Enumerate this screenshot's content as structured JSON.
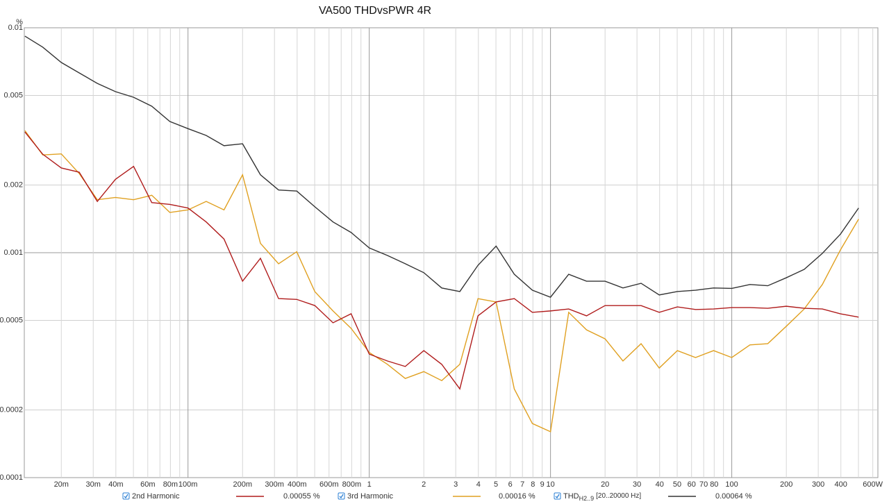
{
  "chart_data": {
    "type": "line",
    "title": "VA500 THDvsPWR 4R",
    "y_label": "%",
    "log_x": true,
    "log_y": true,
    "grid": true,
    "legend": "bottom",
    "x": [
      0.0126,
      0.0158,
      0.02,
      0.0251,
      0.0316,
      0.0398,
      0.0501,
      0.0631,
      0.0794,
      0.1,
      0.126,
      0.158,
      0.2,
      0.251,
      0.316,
      0.398,
      0.501,
      0.631,
      0.794,
      1,
      1.26,
      1.58,
      2,
      2.51,
      3.16,
      3.98,
      5.01,
      6.31,
      7.94,
      10,
      12.6,
      15.8,
      20,
      25.1,
      31.6,
      39.8,
      50.1,
      63.1,
      79.4,
      100,
      126,
      158,
      200,
      251,
      316,
      398,
      501
    ],
    "xlim": [
      0.0125,
      640
    ],
    "ylim": [
      0.0001,
      0.01
    ],
    "yticks": [
      0.01,
      0.005,
      0.002,
      0.001,
      0.0005,
      0.0002,
      0.0001
    ],
    "xticks": [
      {
        "value": 0.02,
        "label": "20m"
      },
      {
        "value": 0.03,
        "label": "30m"
      },
      {
        "value": 0.04,
        "label": "40m"
      },
      {
        "value": 0.06,
        "label": "60m"
      },
      {
        "value": 0.08,
        "label": "80m"
      },
      {
        "value": 0.1,
        "label": "100m"
      },
      {
        "value": 0.2,
        "label": "200m"
      },
      {
        "value": 0.3,
        "label": "300m"
      },
      {
        "value": 0.4,
        "label": "400m"
      },
      {
        "value": 0.6,
        "label": "600m"
      },
      {
        "value": 0.8,
        "label": "800m"
      },
      1,
      2,
      3,
      4,
      5,
      6,
      7,
      8,
      9,
      10,
      20,
      30,
      40,
      50,
      60,
      70,
      80,
      100,
      200,
      300,
      400,
      {
        "value": 600,
        "label": "600W"
      }
    ],
    "xminorticks": [
      0.05,
      0.07,
      0.09,
      0.5,
      0.7,
      0.9,
      90,
      500
    ],
    "series": [
      {
        "name": "2nd Harmonic",
        "legend_value": "0.00055 %",
        "color": "#b01c1c",
        "values": [
          0.00344,
          0.00274,
          0.00238,
          0.00228,
          0.00169,
          0.00212,
          0.00242,
          0.00167,
          0.00164,
          0.00158,
          0.00137,
          0.00115,
          0.000747,
          0.000944,
          0.000625,
          0.00062,
          0.000582,
          0.000488,
          0.000535,
          0.000354,
          0.00033,
          0.000312,
          0.000367,
          0.000319,
          0.000248,
          0.000524,
          0.000604,
          0.000625,
          0.000543,
          0.000551,
          0.000562,
          0.000524,
          0.000582,
          0.000582,
          0.000582,
          0.000543,
          0.000574,
          0.000559,
          0.000562,
          0.00057,
          0.00057,
          0.000566,
          0.000578,
          0.000566,
          0.000562,
          0.000535,
          0.000517
        ]
      },
      {
        "name": "3rd Harmonic",
        "legend_value": "0.00016 %",
        "color": "#e0a020",
        "values": [
          0.00349,
          0.00272,
          0.00275,
          0.00225,
          0.00172,
          0.00176,
          0.00172,
          0.0018,
          0.00151,
          0.00155,
          0.00169,
          0.00155,
          0.00222,
          0.0011,
          0.000893,
          0.00101,
          0.000671,
          0.000551,
          0.000461,
          0.00036,
          0.000319,
          0.000276,
          0.000296,
          0.00027,
          0.000319,
          0.000625,
          0.000604,
          0.000248,
          0.000174,
          0.00016,
          0.000543,
          0.000454,
          0.000414,
          0.00033,
          0.000394,
          0.000307,
          0.000367,
          0.000342,
          0.000367,
          0.000342,
          0.000389,
          0.000394,
          0.000471,
          0.000562,
          0.000722,
          0.00103,
          0.00141
        ]
      },
      {
        "name": "THD",
        "name_sub": "H2..9",
        "name_suffix": "[20..20000 Hz]",
        "legend_value": "0.00064 %",
        "color": "#333333",
        "values": [
          0.00918,
          0.0082,
          0.00701,
          0.0063,
          0.00566,
          0.0052,
          0.00491,
          0.00448,
          0.00383,
          0.00356,
          0.00332,
          0.00299,
          0.00305,
          0.00222,
          0.0019,
          0.00188,
          0.0016,
          0.00137,
          0.00123,
          0.00105,
          0.000972,
          0.000893,
          0.000815,
          0.000697,
          0.000672,
          0.000879,
          0.00107,
          0.000802,
          0.000681,
          0.000634,
          0.000802,
          0.000747,
          0.000747,
          0.000697,
          0.000731,
          0.000649,
          0.000672,
          0.000681,
          0.000697,
          0.000694,
          0.000722,
          0.000713,
          0.000774,
          0.000843,
          0.000993,
          0.00121,
          0.00158
        ]
      }
    ]
  }
}
